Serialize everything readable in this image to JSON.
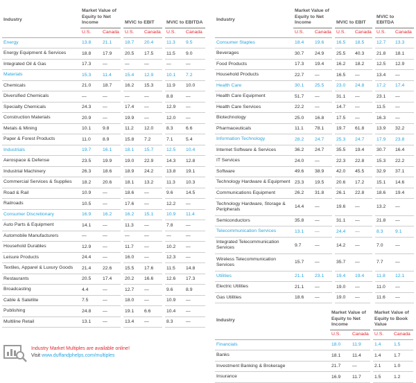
{
  "tables": [
    {
      "industry_header": "Industry",
      "groups": [
        {
          "title": "Market Value of Equity to Net Income",
          "sub": [
            "U.S.",
            "Canada"
          ]
        },
        {
          "title": "MVIC to EBIT",
          "sub": [
            "U.S.",
            "Canada"
          ]
        },
        {
          "title": "MVIC to EBITDA",
          "sub": [
            "U.S.",
            "Canada"
          ]
        }
      ],
      "rows": [
        {
          "label": "Energy",
          "sector": true,
          "cells": [
            "13.8",
            "21.1",
            "18.7",
            "20.4",
            "11.3",
            "9.5"
          ]
        },
        {
          "label": "Energy Equipment & Services",
          "cells": [
            "18.8",
            "17.9",
            "20.5",
            "17.5",
            "11.5",
            "9.0"
          ]
        },
        {
          "label": "Integrated Oil & Gas",
          "cells": [
            "17.3",
            "—",
            "—",
            "—",
            "—",
            "—"
          ]
        },
        {
          "label": "Materials",
          "sector": true,
          "cells": [
            "15.3",
            "11.4",
            "15.4",
            "12.9",
            "10.1",
            "7.2"
          ]
        },
        {
          "label": "Chemicals",
          "cells": [
            "21.0",
            "18.7",
            "16.2",
            "15.3",
            "11.9",
            "10.0"
          ]
        },
        {
          "label": "Diversified Chemicals",
          "cells": [
            "—",
            "—",
            "—",
            "—",
            "8.8",
            "—"
          ]
        },
        {
          "label": "Specialty Chemicals",
          "cells": [
            "24.3",
            "—",
            "17.4",
            "—",
            "12.9",
            "—"
          ]
        },
        {
          "label": "Construction Materials",
          "cells": [
            "20.9",
            "—",
            "19.9",
            "—",
            "12.0",
            "—"
          ]
        },
        {
          "label": "Metals & Mining",
          "cells": [
            "10.1",
            "9.8",
            "11.2",
            "12.0",
            "8.3",
            "6.6"
          ]
        },
        {
          "label": "Paper & Forest Products",
          "cells": [
            "11.0",
            "8.9",
            "15.8",
            "7.2",
            "7.1",
            "5.4"
          ]
        },
        {
          "label": "Industrials",
          "sector": true,
          "cells": [
            "19.7",
            "16.1",
            "18.1",
            "15.7",
            "12.5",
            "10.4"
          ]
        },
        {
          "label": "Aerospace & Defense",
          "cells": [
            "23.5",
            "19.9",
            "19.0",
            "22.9",
            "14.3",
            "12.8"
          ]
        },
        {
          "label": "Industrial Machinery",
          "cells": [
            "26.3",
            "18.6",
            "18.9",
            "24.2",
            "13.8",
            "19.1"
          ]
        },
        {
          "label": "Commercial Services & Supplies",
          "cells": [
            "18.2",
            "20.6",
            "18.1",
            "13.2",
            "11.3",
            "10.3"
          ]
        },
        {
          "label": "Road & Rail",
          "cells": [
            "10.9",
            "—",
            "18.6",
            "—",
            "9.6",
            "14.5"
          ]
        },
        {
          "label": "Railroads",
          "cells": [
            "10.5",
            "—",
            "17.6",
            "—",
            "12.2",
            "—"
          ]
        },
        {
          "label": "Consumer Discretionary",
          "sector": true,
          "cells": [
            "16.9",
            "16.2",
            "16.2",
            "15.1",
            "10.9",
            "11.4"
          ]
        },
        {
          "label": "Auto Parts & Equipment",
          "cells": [
            "14.1",
            "—",
            "11.3",
            "—",
            "7.8",
            "—"
          ]
        },
        {
          "label": "Automobile Manufacturers",
          "cells": [
            "—",
            "—",
            "—",
            "—",
            "—",
            "—"
          ]
        },
        {
          "label": "Household Durables",
          "cells": [
            "12.9",
            "—",
            "11.7",
            "—",
            "10.2",
            "—"
          ]
        },
        {
          "label": "Leisure Products",
          "cells": [
            "24.4",
            "—",
            "16.0",
            "—",
            "12.3",
            "—"
          ]
        },
        {
          "label": "Textiles, Apparel & Luxury Goods",
          "cells": [
            "21.4",
            "22.6",
            "15.5",
            "17.6",
            "11.5",
            "14.8"
          ]
        },
        {
          "label": "Restaurants",
          "cells": [
            "20.5",
            "17.4",
            "20.2",
            "16.6",
            "12.6",
            "17.3"
          ]
        },
        {
          "label": "Broadcasting",
          "cells": [
            "4.4",
            "—",
            "12.7",
            "—",
            "9.6",
            "8.9"
          ]
        },
        {
          "label": "Cable & Satellite",
          "cells": [
            "7.5",
            "—",
            "18.0",
            "—",
            "10.9",
            "—"
          ]
        },
        {
          "label": "Publishing",
          "cells": [
            "24.8",
            "—",
            "19.1",
            "6.6",
            "10.4",
            "—"
          ]
        },
        {
          "label": "Multiline Retail",
          "cells": [
            "13.1",
            "—",
            "13.4",
            "—",
            "8.3",
            "—"
          ]
        }
      ]
    },
    {
      "industry_header": "Industry",
      "groups": [
        {
          "title": "Market Value of Equity to Net Income",
          "sub": [
            "U.S.",
            "Canada"
          ]
        },
        {
          "title": "MVIC to EBIT",
          "sub": [
            "U.S.",
            "Canada"
          ]
        },
        {
          "title": "MVIC to EBITDA",
          "sub": [
            "U.S.",
            "Canada"
          ]
        }
      ],
      "rows": [
        {
          "label": "Consumer Staples",
          "sector": true,
          "cells": [
            "18.4",
            "19.6",
            "16.5",
            "18.5",
            "12.7",
            "13.3"
          ]
        },
        {
          "label": "Beverages",
          "cells": [
            "30.7",
            "24.9",
            "25.5",
            "40.3",
            "21.8",
            "18.1"
          ]
        },
        {
          "label": "Food Products",
          "cells": [
            "17.3",
            "19.4",
            "16.2",
            "18.2",
            "12.5",
            "12.9"
          ]
        },
        {
          "label": "Household Products",
          "cells": [
            "22.7",
            "—",
            "16.5",
            "—",
            "13.4",
            "—"
          ]
        },
        {
          "label": "Health Care",
          "sector": true,
          "cells": [
            "30.1",
            "25.5",
            "23.0",
            "24.8",
            "17.2",
            "17.4"
          ]
        },
        {
          "label": "Health Care Equipment",
          "cells": [
            "51.7",
            "—",
            "31.1",
            "—",
            "23.1",
            "—"
          ]
        },
        {
          "label": "Health Care Services",
          "cells": [
            "22.2",
            "—",
            "14.7",
            "—",
            "11.5",
            "—"
          ]
        },
        {
          "label": "Biotechnology",
          "cells": [
            "25.0",
            "16.8",
            "17.5",
            "—",
            "16.3",
            "—"
          ]
        },
        {
          "label": "Pharmaceuticals",
          "cells": [
            "11.1",
            "78.1",
            "19.7",
            "61.8",
            "13.9",
            "32.2"
          ]
        },
        {
          "label": "Information Technology",
          "sector": true,
          "cells": [
            "28.2",
            "24.7",
            "25.3",
            "24.7",
            "17.9",
            "23.8"
          ]
        },
        {
          "label": "Internet Software & Services",
          "cells": [
            "36.2",
            "24.7",
            "35.5",
            "19.4",
            "30.7",
            "16.4"
          ]
        },
        {
          "label": "IT Services",
          "cells": [
            "24.0",
            "—",
            "22.3",
            "22.8",
            "15.3",
            "22.2"
          ]
        },
        {
          "label": "Software",
          "cells": [
            "49.6",
            "38.9",
            "42.0",
            "45.5",
            "32.9",
            "37.1"
          ]
        },
        {
          "label": "Technology Hardware & Equipment",
          "cells": [
            "23.3",
            "19.5",
            "20.6",
            "17.2",
            "15.1",
            "14.6"
          ]
        },
        {
          "label": "Communications Equipment",
          "cells": [
            "26.2",
            "31.8",
            "26.1",
            "22.8",
            "18.6",
            "19.4"
          ]
        },
        {
          "label": "Technology Hardware, Storage & Peripherals",
          "cells": [
            "14.4",
            "—",
            "19.6",
            "—",
            "13.2",
            "—"
          ]
        },
        {
          "label": "Semiconductors",
          "cells": [
            "35.8",
            "—",
            "31.1",
            "—",
            "21.8",
            "—"
          ]
        },
        {
          "label": "Telecommunication Services",
          "sector": true,
          "cells": [
            "13.1",
            "—",
            "24.4",
            "—",
            "8.3",
            "9.1"
          ]
        },
        {
          "label": "Integrated Telecommunication Services",
          "cells": [
            "9.7",
            "—",
            "14.2",
            "—",
            "7.0",
            "—"
          ]
        },
        {
          "label": "Wireless Telecommunication Services",
          "cells": [
            "15.7",
            "—",
            "35.7",
            "—",
            "7.7",
            "—"
          ]
        },
        {
          "label": "Utilities",
          "sector": true,
          "cells": [
            "21.1",
            "23.1",
            "19.4",
            "19.4",
            "11.8",
            "12.1"
          ]
        },
        {
          "label": "Electric Utilities",
          "cells": [
            "21.1",
            "—",
            "19.0",
            "—",
            "11.0",
            "—"
          ]
        },
        {
          "label": "Gas Utilities",
          "cells": [
            "18.6",
            "—",
            "19.0",
            "—",
            "11.6",
            "—"
          ]
        }
      ]
    },
    {
      "industry_header": "Industry",
      "groups": [
        {
          "title": "Market Value of Equity to Net Income",
          "sub": [
            "U.S.",
            "Canada"
          ]
        },
        {
          "title": "Market Value of Equity to Book Value",
          "sub": [
            "U.S.",
            "Canada"
          ]
        }
      ],
      "rows": [
        {
          "label": "Financials",
          "sector": true,
          "cells": [
            "18.0",
            "11.9",
            "1.4",
            "1.5"
          ]
        },
        {
          "label": "Banks",
          "cells": [
            "18.1",
            "11.4",
            "1.4",
            "1.7"
          ]
        },
        {
          "label": "Investment Banking & Brokerage",
          "cells": [
            "21.7",
            "—",
            "2.1",
            "1.0"
          ]
        },
        {
          "label": "Insurance",
          "cells": [
            "16.9",
            "11.7",
            "1.5",
            "1.2"
          ]
        }
      ]
    }
  ],
  "note": {
    "line1": "Industry Market Multiples are available online!",
    "line2_prefix": "Visit ",
    "line2_link": "www.duffandphelps.com/multiples"
  }
}
